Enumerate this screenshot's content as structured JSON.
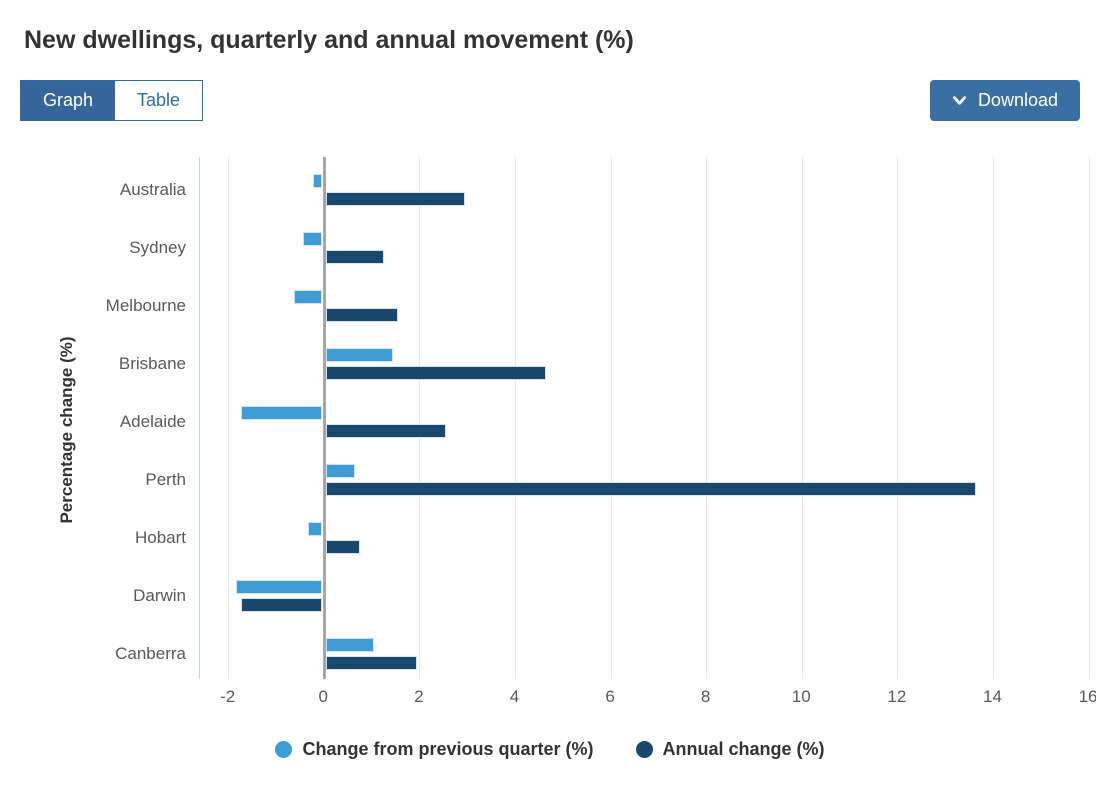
{
  "page": {
    "title": "New dwellings, quarterly and annual movement (%)"
  },
  "toolbar": {
    "view_toggle": [
      {
        "label": "Graph",
        "selected": true
      },
      {
        "label": "Table",
        "selected": false
      }
    ],
    "download_label": "Download"
  },
  "colors": {
    "selected_tab_bg": "#35659a",
    "tab_border": "#2e6da4",
    "tab_text": "#2e6da4",
    "download_bg": "#3a6fa4",
    "quarterly_bar": "#3f9bd3",
    "annual_bar": "#19486c",
    "gridline": "#e7e7e7",
    "zero_line": "#a6a6a6",
    "axis_line": "#bdd7ee",
    "label_gray": "#595959"
  },
  "chart_data": {
    "type": "bar",
    "orientation": "horizontal",
    "title": "New dwellings, quarterly and annual movement (%)",
    "ylabel": "Percentage change (%)",
    "xlabel": "",
    "categories": [
      "Australia",
      "Sydney",
      "Melbourne",
      "Brisbane",
      "Adelaide",
      "Perth",
      "Hobart",
      "Darwin",
      "Canberra"
    ],
    "series": [
      {
        "name": "Change from previous quarter (%)",
        "color": "#3f9bd3",
        "values": [
          -0.2,
          -0.4,
          -0.6,
          1.4,
          -1.7,
          0.6,
          -0.3,
          -1.8,
          1.0
        ]
      },
      {
        "name": "Annual change (%)",
        "color": "#19486c",
        "values": [
          2.9,
          1.2,
          1.5,
          4.6,
          2.5,
          13.6,
          0.7,
          -1.7,
          1.9
        ]
      }
    ],
    "x_ticks": [
      -2,
      0,
      2,
      4,
      6,
      8,
      10,
      12,
      14,
      16
    ],
    "xlim": [
      -2.6,
      16.25
    ],
    "grid": true,
    "legend_position": "bottom"
  }
}
